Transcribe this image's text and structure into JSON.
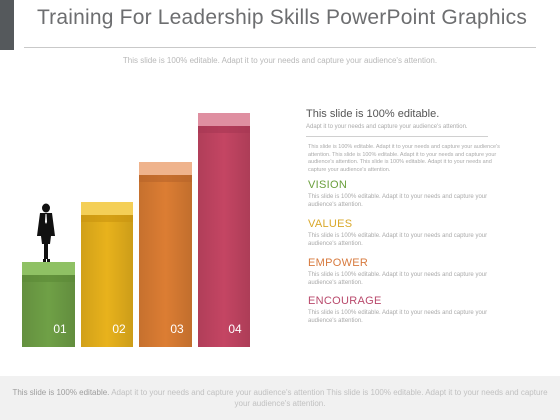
{
  "slide": {
    "title": "Training For Leadership Skills PowerPoint Graphics",
    "subtitle": "This slide is 100% editable. Adapt it to your needs and capture your audience's attention."
  },
  "bars": [
    {
      "label": "01",
      "color_front": "#6fa046",
      "color_top": "#8fc164",
      "level": 1
    },
    {
      "label": "02",
      "color_front": "#e8b21c",
      "color_top": "#f4cf57",
      "level": 2
    },
    {
      "label": "03",
      "color_front": "#dc7d33",
      "color_top": "#efb38c",
      "level": 3
    },
    {
      "label": "04",
      "color_front": "#c44563",
      "color_top": "#df8fa1",
      "level": 4
    }
  ],
  "figure_icon": "businessman-silhouette-icon",
  "panel": {
    "heading": "This slide is 100% editable.",
    "sub": "Adapt it to your needs and capture your audience's attention.",
    "paragraph": "This slide is 100% editable. Adapt it to your needs and capture your audience's attention. This slide is 100% editable. Adapt it to your needs and capture your audience's attention. This slide is 100% editable. Adapt it to your needs and capture your audience's attention.",
    "items": [
      {
        "label": "VISION",
        "color": "#6a9f3c",
        "desc": "This slide is 100% editable. Adapt it to your needs and capture your audience's attention."
      },
      {
        "label": "VALUES",
        "color": "#d9a82a",
        "desc": "This slide is 100% editable. Adapt it to your needs and capture your audience's attention."
      },
      {
        "label": "EMPOWER",
        "color": "#d77a3e",
        "desc": "This slide is 100% editable. Adapt it to your needs and capture your audience's attention."
      },
      {
        "label": "ENCOURAGE",
        "color": "#b94a6c",
        "desc": "This slide is 100% editable. Adapt it to your needs and capture your audience's attention."
      }
    ]
  },
  "footer": {
    "bold": "This slide is 100% editable.",
    "rest": " Adapt it to your needs and capture your audience's attention This slide is 100% editable. Adapt it to your needs and capture your audience's attention."
  }
}
